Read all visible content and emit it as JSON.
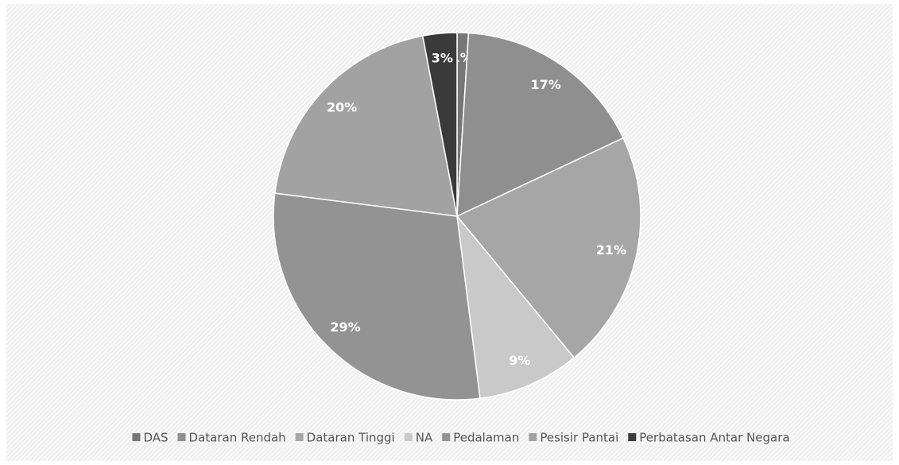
{
  "chart_data": {
    "type": "pie",
    "categories": [
      "DAS",
      "Dataran Rendah",
      "Dataran Tinggi",
      "NA",
      "Pedalaman",
      "Pesisir Pantai",
      "Perbatasan Antar Negara"
    ],
    "values": [
      1,
      17,
      21,
      9,
      29,
      20,
      3
    ],
    "value_labels": [
      "1%",
      "17%",
      "21%",
      "9%",
      "29%",
      "20%",
      "3%"
    ],
    "colors": [
      "#777777",
      "#8f8f8f",
      "#a6a6a6",
      "#c9c9c9",
      "#939393",
      "#a2a2a2",
      "#3a3a3a"
    ],
    "legend": "bottom"
  }
}
